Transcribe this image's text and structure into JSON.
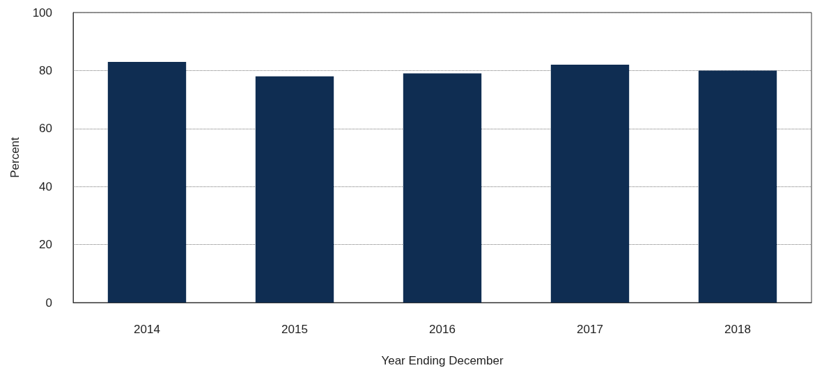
{
  "chart_data": {
    "type": "bar",
    "xlabel": "Year Ending December",
    "ylabel": "Percent",
    "categories": [
      "2014",
      "2015",
      "2016",
      "2017",
      "2018"
    ],
    "values": [
      83,
      78,
      79,
      82,
      80
    ],
    "color": "#0f2d52",
    "ylim": [
      0,
      100
    ],
    "yticks": [
      0,
      20,
      40,
      60,
      80,
      100
    ],
    "grid": "y"
  }
}
